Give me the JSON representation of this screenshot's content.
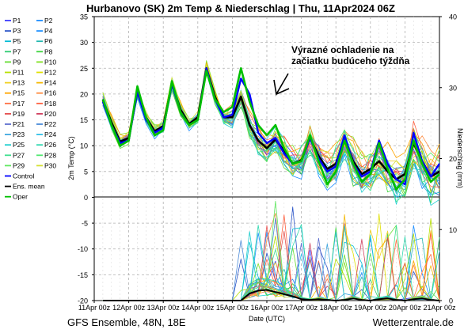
{
  "chart_data": {
    "type": "line",
    "title": "Hurbanovo  (SK)  2m Temp & Niederschlag | Thu, 11Apr2024 06Z",
    "ylabel_left": "2m Temp (°C)",
    "ylabel_right": "Niederschlag (mm)",
    "xlabel": "Date (UTC)",
    "x_ticks": [
      "11Apr 00z",
      "12Apr 00z",
      "13Apr 00z",
      "14Apr 00z",
      "15Apr 00z",
      "16Apr 00z",
      "17Apr 00z",
      "18Apr 00z",
      "19Apr 00z",
      "20Apr 00z",
      "21Apr 00z"
    ],
    "y_ticks_left": [
      "35",
      "30",
      "25",
      "20",
      "15",
      "10",
      "5",
      "0",
      "-5",
      "-10",
      "-15",
      "-20"
    ],
    "y_ticks_right": [
      "40",
      "30",
      "20",
      "10",
      "0"
    ],
    "ylim_left": [
      -20,
      35
    ],
    "ylim_right": [
      0,
      40
    ],
    "x": [
      "11Apr 06z",
      "11Apr 12z",
      "11Apr 18z",
      "12Apr 00z",
      "12Apr 06z",
      "12Apr 12z",
      "12Apr 18z",
      "13Apr 00z",
      "13Apr 06z",
      "13Apr 12z",
      "13Apr 18z",
      "14Apr 00z",
      "14Apr 06z",
      "14Apr 12z",
      "14Apr 18z",
      "15Apr 00z",
      "15Apr 06z",
      "15Apr 12z",
      "15Apr 18z",
      "16Apr 00z",
      "16Apr 06z",
      "16Apr 12z",
      "16Apr 18z",
      "17Apr 00z",
      "17Apr 06z",
      "17Apr 12z",
      "17Apr 18z",
      "18Apr 00z",
      "18Apr 06z",
      "18Apr 12z",
      "18Apr 18z",
      "19Apr 00z",
      "19Apr 06z",
      "19Apr 12z",
      "19Apr 18z",
      "20Apr 00z",
      "20Apr 06z",
      "20Apr 12z",
      "20Apr 18z",
      "21Apr 00z"
    ],
    "grid": true,
    "legend_placement": "left",
    "legend": [
      "P1",
      "P2",
      "P3",
      "P4",
      "P5",
      "P6",
      "P7",
      "P8",
      "P9",
      "P10",
      "P11",
      "P12",
      "P13",
      "P14",
      "P15",
      "P16",
      "P17",
      "P18",
      "P19",
      "P20",
      "P21",
      "P22",
      "P23",
      "P24",
      "P25",
      "P26",
      "P27",
      "P28",
      "P29",
      "P30",
      "Control",
      "Ens. mean",
      "Oper"
    ],
    "legend_colors": [
      "#3b3bff",
      "#1a8cff",
      "#2b55c8",
      "#1e90ff",
      "#00bcd4",
      "#22b8b0",
      "#2ecc71",
      "#3cd43c",
      "#66dd33",
      "#80e020",
      "#b8e000",
      "#e0e000",
      "#f0d020",
      "#f5b800",
      "#ffa500",
      "#ff8c40",
      "#ff7043",
      "#ff6040",
      "#e55050",
      "#d04060",
      "#5f6fd0",
      "#4a8ad8",
      "#40a8e0",
      "#30c0e8",
      "#20d0d0",
      "#30d8b0",
      "#40e090",
      "#50e870",
      "#60e860",
      "#d4e030",
      "#0000ff",
      "#000000",
      "#00c000"
    ],
    "series": [
      {
        "name": "Ens. mean",
        "values": [
          18.8,
          14.5,
          10.8,
          11.5,
          20.5,
          15.5,
          12.8,
          13.8,
          22.0,
          17.0,
          14.2,
          15.5,
          25.0,
          19.5,
          15.5,
          15.5,
          19.5,
          14.0,
          11.0,
          9.5,
          11.2,
          9.0,
          6.5,
          7.2,
          11.5,
          8.0,
          5.5,
          6.5,
          11.5,
          7.0,
          4.5,
          5.5,
          7.0,
          5.0,
          3.5,
          4.5,
          10.5,
          7.0,
          4.0,
          5.0
        ]
      },
      {
        "name": "Control",
        "values": [
          18.5,
          14.0,
          10.5,
          11.0,
          20.5,
          15.0,
          12.5,
          13.5,
          22.0,
          16.5,
          14.0,
          15.0,
          25.0,
          19.0,
          15.5,
          16.0,
          23.0,
          20.0,
          12.5,
          10.5,
          11.5,
          8.5,
          6.5,
          7.0,
          11.5,
          7.5,
          5.0,
          6.0,
          12.0,
          6.5,
          4.0,
          5.0,
          11.0,
          6.5,
          3.5,
          2.5,
          12.5,
          7.0,
          4.0,
          6.5
        ]
      },
      {
        "name": "Oper",
        "values": [
          19.0,
          14.0,
          10.0,
          11.0,
          21.5,
          15.5,
          12.0,
          13.0,
          22.5,
          16.5,
          14.0,
          15.0,
          24.5,
          19.0,
          16.5,
          17.5,
          25.0,
          18.5,
          14.0,
          12.0,
          14.0,
          9.5,
          6.5,
          7.0,
          12.0,
          7.0,
          2.5,
          5.0,
          11.0,
          6.5,
          3.0,
          4.5,
          10.5,
          5.5,
          1.5,
          3.5,
          11.0,
          6.5,
          3.0,
          4.5
        ]
      }
    ],
    "precip_mean_mm": [
      0,
      0,
      0,
      0,
      0,
      0,
      0,
      0,
      0,
      0,
      0,
      0,
      0,
      0,
      0,
      0,
      0,
      1.0,
      1.4,
      1.5,
      1.2,
      0.9,
      0.6,
      0.2,
      0.1,
      0.2,
      0.1,
      0.0,
      0.1,
      0.3,
      0.1,
      0.0,
      0.2,
      0.3,
      0.1,
      0.0,
      0.2,
      0.3,
      0.1,
      0.0
    ]
  },
  "annotation": {
    "line1": "Výrazné ochladenie na",
    "line2": "začiatku budúceho týždňa"
  },
  "footer": {
    "left": "GFS Ensemble, 48N, 18E",
    "right": "Wetterzentrale.de"
  }
}
